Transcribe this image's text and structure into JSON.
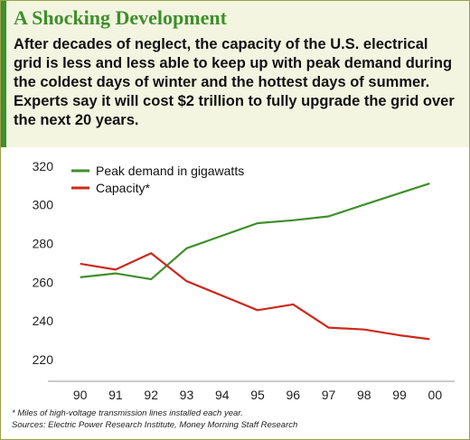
{
  "header": {
    "title": "A Shocking Development",
    "lede_lines": [
      "After decades of neglect, the capacity of the U.S. electrical",
      "grid is less and less able to keep up with peak demand during",
      "the coldest days of winter and the hottest days of summer.",
      "Experts say it will cost $2 trillion to fully upgrade the grid over",
      "the next 20 years."
    ]
  },
  "footnotes": {
    "note": "* Miles of high-voltage transmission lines installed each year.",
    "sources": "Sources: Electric Power Research Institute, Money Morning Staff Research"
  },
  "colors": {
    "accent_green": "#3f8f2b",
    "demand_line": "#3f8f2b",
    "capacity_line": "#cc2a1e",
    "header_bg": "#f3f5e1"
  },
  "chart_data": {
    "type": "line",
    "title": "",
    "xlabel": "",
    "ylabel": "",
    "categories": [
      "90",
      "91",
      "92",
      "93",
      "94",
      "95",
      "96",
      "97",
      "98",
      "99",
      "00"
    ],
    "ylim": [
      212,
      326
    ],
    "yticks": [
      220,
      240,
      260,
      280,
      300,
      320
    ],
    "grid": false,
    "legend_position": "top-left",
    "series": [
      {
        "name": "Peak demand in gigawatts",
        "color": "#3f8f2b",
        "x": [
          90,
          91,
          92,
          93,
          94,
          95,
          96,
          97,
          98,
          99,
          99.85
        ],
        "values": [
          262.5,
          264.5,
          261.5,
          277.5,
          284,
          290.5,
          292,
          294,
          300,
          306,
          311
        ]
      },
      {
        "name": "Capacity*",
        "color": "#cc2a1e",
        "x": [
          90,
          91,
          92,
          93,
          94,
          95,
          96,
          97,
          98,
          99,
          99.85
        ],
        "values": [
          269.5,
          266.5,
          275,
          260.5,
          253,
          245.5,
          248.5,
          236.5,
          235.5,
          232.5,
          230.5
        ]
      }
    ]
  }
}
